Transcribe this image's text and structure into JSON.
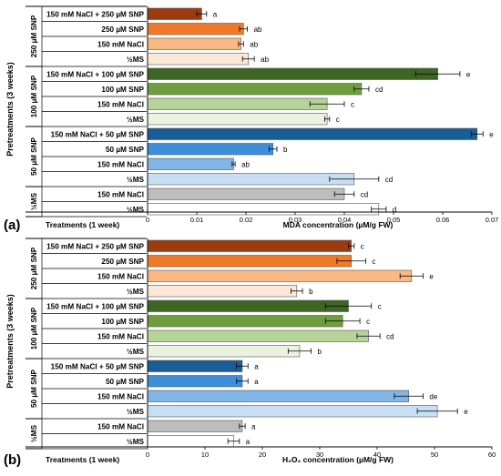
{
  "chart_data": [
    {
      "type": "bar",
      "orientation": "horizontal",
      "panel_label": "(a)",
      "xlabel": "MDA concentration (µM/g FW)",
      "ylabel": "Pretreatments (3 weeks)",
      "treatments_label": "Treatments (1 week)",
      "xlim": [
        0,
        0.07
      ],
      "xticks": [
        "0",
        "0.01",
        "0.02",
        "0.03",
        "0.04",
        "0.05",
        "0.06",
        "0.07"
      ],
      "groups": [
        {
          "name": "250 µM SNP",
          "rows": [
            {
              "label": "150 mM NaCl + 250 µM SNP",
              "value": 0.011,
              "error": 0.001,
              "sig": "a",
              "color": "#9a3c10"
            },
            {
              "label": "250 µM SNP",
              "value": 0.0195,
              "error": 0.0008,
              "sig": "ab",
              "color": "#f07a2a"
            },
            {
              "label": "150 mM NaCl",
              "value": 0.019,
              "error": 0.0005,
              "sig": "ab",
              "color": "#f9b884"
            },
            {
              "label": "½MS",
              "value": 0.0205,
              "error": 0.0012,
              "sig": "ab",
              "color": "#fce8d6"
            }
          ]
        },
        {
          "name": "100 µM SNP",
          "rows": [
            {
              "label": "150 mM NaCl + 100 µM SNP",
              "value": 0.059,
              "error": 0.0045,
              "sig": "e",
              "color": "#3e6524"
            },
            {
              "label": "100 µM SNP",
              "value": 0.0435,
              "error": 0.0015,
              "sig": "cd",
              "color": "#6f9e3f"
            },
            {
              "label": "150 mM NaCl",
              "value": 0.0365,
              "error": 0.0035,
              "sig": "c",
              "color": "#b6d39a"
            },
            {
              "label": "½MS",
              "value": 0.0365,
              "error": 0.0005,
              "sig": "c",
              "color": "#eaf3e0"
            }
          ]
        },
        {
          "name": "50 µM SNP",
          "rows": [
            {
              "label": "150 mM NaCl + 50 µM SNP",
              "value": 0.067,
              "error": 0.0012,
              "sig": "e",
              "color": "#1a5c96"
            },
            {
              "label": "50 µM SNP",
              "value": 0.0255,
              "error": 0.0008,
              "sig": "b",
              "color": "#3c8fd8"
            },
            {
              "label": "150 mM NaCl",
              "value": 0.0175,
              "error": 0.0003,
              "sig": "ab",
              "color": "#7fb6e6"
            },
            {
              "label": "½MS",
              "value": 0.042,
              "error": 0.005,
              "sig": "cd",
              "color": "#c8def2"
            }
          ]
        },
        {
          "name": "½MS",
          "rows": [
            {
              "label": "150 mM NaCl",
              "value": 0.04,
              "error": 0.002,
              "sig": "cd",
              "color": "#bdbdbd"
            },
            {
              "label": "½MS",
              "value": 0.047,
              "error": 0.0015,
              "sig": "d",
              "color": "#ffffff"
            }
          ]
        }
      ]
    },
    {
      "type": "bar",
      "orientation": "horizontal",
      "panel_label": "(b)",
      "xlabel": "H₂O₂ concentration (µM/g FW)",
      "ylabel": "Pretreatments (3 weeks)",
      "treatments_label": "Treatments (1 week)",
      "xlim": [
        0,
        60
      ],
      "xticks": [
        "0",
        "10",
        "20",
        "30",
        "40",
        "50",
        "60"
      ],
      "groups": [
        {
          "name": "250 µM SNP",
          "rows": [
            {
              "label": "150 mM NaCl + 250 µM SNP",
              "value": 35.5,
              "error": 0.5,
              "sig": "c",
              "color": "#9a3c10"
            },
            {
              "label": "250 µM SNP",
              "value": 35.5,
              "error": 2.5,
              "sig": "c",
              "color": "#f07a2a"
            },
            {
              "label": "150 mM NaCl",
              "value": 46.0,
              "error": 2.0,
              "sig": "e",
              "color": "#f9b884"
            },
            {
              "label": "½MS",
              "value": 26.0,
              "error": 1.0,
              "sig": "b",
              "color": "#fce8d6"
            }
          ]
        },
        {
          "name": "100 µM SNP",
          "rows": [
            {
              "label": "150 mM NaCl + 100 µM SNP",
              "value": 35.0,
              "error": 4.0,
              "sig": "c",
              "color": "#3e6524"
            },
            {
              "label": "100 µM SNP",
              "value": 34.0,
              "error": 3.0,
              "sig": "c",
              "color": "#6f9e3f"
            },
            {
              "label": "150 mM NaCl",
              "value": 38.5,
              "error": 2.0,
              "sig": "cd",
              "color": "#b6d39a"
            },
            {
              "label": "½MS",
              "value": 26.5,
              "error": 2.0,
              "sig": "b",
              "color": "#eaf3e0"
            }
          ]
        },
        {
          "name": "50 µM SNP",
          "rows": [
            {
              "label": "150 mM NaCl + 50 µM SNP",
              "value": 16.5,
              "error": 1.0,
              "sig": "a",
              "color": "#1a5c96"
            },
            {
              "label": "50 µM SNP",
              "value": 16.5,
              "error": 1.0,
              "sig": "a",
              "color": "#3c8fd8"
            },
            {
              "label": "150 mM NaCl",
              "value": 45.5,
              "error": 2.5,
              "sig": "de",
              "color": "#7fb6e6"
            },
            {
              "label": "½MS",
              "value": 50.5,
              "error": 3.5,
              "sig": "e",
              "color": "#c8def2"
            }
          ]
        },
        {
          "name": "½MS",
          "rows": [
            {
              "label": "150 mM NaCl",
              "value": 16.5,
              "error": 0.5,
              "sig": "a",
              "color": "#bdbdbd"
            },
            {
              "label": "½MS",
              "value": 15.0,
              "error": 1.0,
              "sig": "a",
              "color": "#ffffff"
            }
          ]
        }
      ]
    }
  ]
}
